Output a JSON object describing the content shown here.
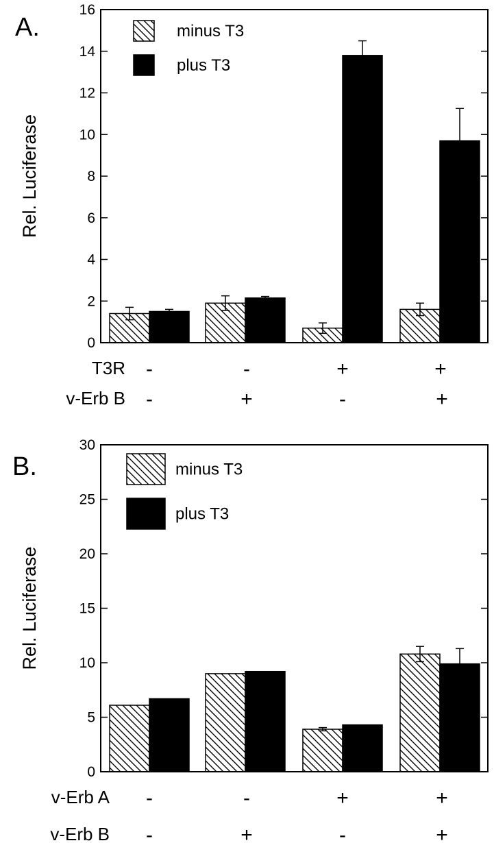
{
  "chart_data": [
    {
      "type": "bar",
      "panel_label": "A.",
      "ylabel": "Rel. Luciferase",
      "ylim": [
        0,
        16
      ],
      "yticks": [
        "0",
        "2",
        "4",
        "6",
        "8",
        "10",
        "12",
        "14",
        "16"
      ],
      "legend": {
        "placement": "top-left",
        "entries": [
          "minus T3",
          "plus T3"
        ]
      },
      "series": [
        {
          "name": "minus T3",
          "pattern": "hatched",
          "values": [
            1.4,
            1.9,
            0.7,
            1.6
          ],
          "errors": [
            0.3,
            0.35,
            0.25,
            0.3
          ]
        },
        {
          "name": "plus T3",
          "pattern": "solid",
          "values": [
            1.5,
            2.15,
            13.8,
            9.7
          ],
          "errors": [
            0.1,
            0.07,
            0.7,
            1.55
          ]
        }
      ],
      "condition_rows": [
        {
          "label": "T3R",
          "signs": [
            "-",
            "-",
            "+",
            "+"
          ]
        },
        {
          "label": "v-Erb B",
          "signs": [
            "-",
            "+",
            "-",
            "+"
          ]
        }
      ]
    },
    {
      "type": "bar",
      "panel_label": "B.",
      "ylabel": "Rel. Luciferase",
      "ylim": [
        0,
        30
      ],
      "yticks": [
        "0",
        "5",
        "10",
        "15",
        "20",
        "25",
        "30"
      ],
      "legend": {
        "placement": "top-left",
        "entries": [
          "minus T3",
          "plus T3"
        ]
      },
      "series": [
        {
          "name": "minus T3",
          "pattern": "hatched",
          "values": [
            6.1,
            9.0,
            3.9,
            10.8
          ],
          "errors": [
            0,
            0,
            0.15,
            0.7
          ]
        },
        {
          "name": "plus T3",
          "pattern": "solid",
          "values": [
            6.7,
            9.2,
            4.3,
            9.9
          ],
          "errors": [
            0,
            0,
            0,
            1.4
          ]
        }
      ],
      "condition_rows": [
        {
          "label": "v-Erb A",
          "signs": [
            "-",
            "-",
            "+",
            "+"
          ]
        },
        {
          "label": "v-Erb B",
          "signs": [
            "-",
            "+",
            "-",
            "+"
          ]
        }
      ]
    }
  ]
}
